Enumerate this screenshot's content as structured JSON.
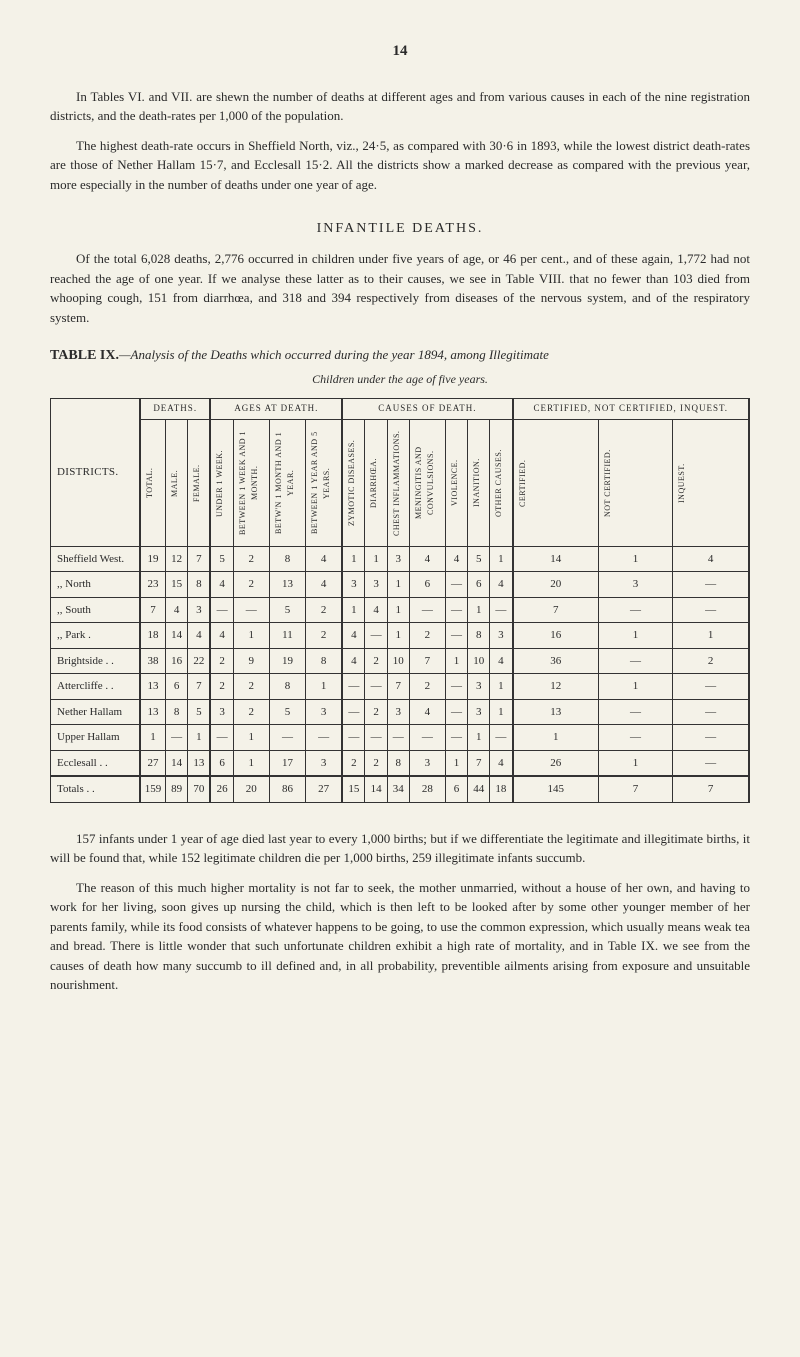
{
  "page_number": "14",
  "para1": "In Tables VI. and VII. are shewn the number of deaths at different ages and from various causes in each of the nine registration districts, and the death-rates per 1,000 of the population.",
  "para2": "The highest death-rate occurs in Sheffield North, viz., 24·5, as compared with 30·6 in 1893, while the lowest district death-rates are those of Nether Hallam 15·7, and Ecclesall 15·2. All the districts show a marked decrease as compared with the previous year, more especially in the number of deaths under one year of age.",
  "section_title": "INFANTILE DEATHS.",
  "para3": "Of the total 6,028 deaths, 2,776 occurred in children under five years of age, or 46 per cent., and of these again, 1,772 had not reached the age of one year. If we analyse these latter as to their causes, we see in Table VIII. that no fewer than 103 died from whooping cough, 151 from diarrhœa, and 318 and 394 respectively from diseases of the nervous system, and of the respiratory system.",
  "table_label": "TABLE IX.",
  "table_caption": "—Analysis of the Deaths which occurred during the year 1894, among Illegitimate",
  "table_subtitle": "Children under the age of five years.",
  "group_headers": {
    "deaths": "DEATHS.",
    "ages": "AGES AT DEATH.",
    "causes": "CAUSES OF DEATH.",
    "cert": "CERTIFIED, NOT CERTIFIED, INQUEST."
  },
  "col_headers": {
    "districts": "DISTRICTS.",
    "total": "TOTAL.",
    "male": "MALE.",
    "female": "FEMALE.",
    "under1w": "UNDER 1 WEEK.",
    "btw1w1m": "BETWEEN 1 WEEK AND 1 MONTH.",
    "btw1m1y": "BETW'N 1 MONTH AND 1 YEAR.",
    "btw1y5y": "BETWEEN 1 YEAR AND 5 YEARS.",
    "zymotic": "ZYMOTIC DISEASES.",
    "diarrhoea": "DIARRHŒA.",
    "chest": "CHEST INFLAMMATIONS.",
    "meningitis": "MENINGITIS AND CONVULSIONS.",
    "violence": "VIOLENCE.",
    "inanition": "INANITION.",
    "other": "OTHER CAUSES.",
    "certified": "CERTIFIED.",
    "notcert": "NOT CERTIFIED.",
    "inquest": "INQUEST."
  },
  "rows": [
    {
      "label": "Sheffield West.",
      "cells": [
        "19",
        "12",
        "7",
        "5",
        "2",
        "8",
        "4",
        "1",
        "1",
        "3",
        "4",
        "4",
        "5",
        "1",
        "14",
        "1",
        "4"
      ]
    },
    {
      "label": ",,        North",
      "cells": [
        "23",
        "15",
        "8",
        "4",
        "2",
        "13",
        "4",
        "3",
        "3",
        "1",
        "6",
        "—",
        "6",
        "4",
        "20",
        "3",
        "—"
      ]
    },
    {
      "label": ",,        South",
      "cells": [
        "7",
        "4",
        "3",
        "—",
        "—",
        "5",
        "2",
        "1",
        "4",
        "1",
        "—",
        "—",
        "1",
        "—",
        "7",
        "—",
        "—"
      ]
    },
    {
      "label": ",,        Park .",
      "cells": [
        "18",
        "14",
        "4",
        "4",
        "1",
        "11",
        "2",
        "4",
        "—",
        "1",
        "2",
        "—",
        "8",
        "3",
        "16",
        "1",
        "1"
      ]
    },
    {
      "label": "Brightside .   .",
      "cells": [
        "38",
        "16",
        "22",
        "2",
        "9",
        "19",
        "8",
        "4",
        "2",
        "10",
        "7",
        "1",
        "10",
        "4",
        "36",
        "—",
        "2"
      ]
    },
    {
      "label": "Attercliffe .    .",
      "cells": [
        "13",
        "6",
        "7",
        "2",
        "2",
        "8",
        "1",
        "—",
        "—",
        "7",
        "2",
        "—",
        "3",
        "1",
        "12",
        "1",
        "—"
      ]
    },
    {
      "label": "Nether Hallam",
      "cells": [
        "13",
        "8",
        "5",
        "3",
        "2",
        "5",
        "3",
        "—",
        "2",
        "3",
        "4",
        "—",
        "3",
        "1",
        "13",
        "—",
        "—"
      ]
    },
    {
      "label": "Upper Hallam",
      "cells": [
        "1",
        "—",
        "1",
        "—",
        "1",
        "—",
        "—",
        "—",
        "—",
        "—",
        "—",
        "—",
        "1",
        "—",
        "1",
        "—",
        "—"
      ]
    },
    {
      "label": "Ecclesall  .    .",
      "cells": [
        "27",
        "14",
        "13",
        "6",
        "1",
        "17",
        "3",
        "2",
        "2",
        "8",
        "3",
        "1",
        "7",
        "4",
        "26",
        "1",
        "—"
      ]
    }
  ],
  "totals": {
    "label": "Totals .    .",
    "cells": [
      "159",
      "89",
      "70",
      "26",
      "20",
      "86",
      "27",
      "15",
      "14",
      "34",
      "28",
      "6",
      "44",
      "18",
      "145",
      "7",
      "7"
    ]
  },
  "para4": "157 infants under 1 year of age died last year to every 1,000 births; but if we differ­entiate the legitimate and illegitimate births, it will be found that, while 152 legitimate children die per 1,000 births, 259 illegitimate infants succumb.",
  "para5": "The reason of this much higher mortality is not far to seek, the mother unmarried, without a house of her own, and having to work for her living, soon gives up nursing the child, which is then left to be looked after by some other younger member of her parents family, while its food consists of whatever happens to be going, to use the common expression, which usually means weak tea and bread. There is little wonder that such unfortunate children exhibit a high rate of mortality, and in Table IX. we see from the causes of death how many succumb to ill defined and, in all probability, preventible ailments arising from exposure and unsuitable nourishment."
}
